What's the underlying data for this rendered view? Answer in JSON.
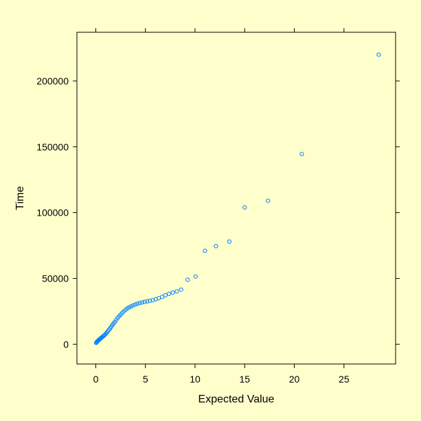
{
  "colors": {
    "background": "#ffffcc",
    "panel": "#ffffcc",
    "point": "#0080ff",
    "axis": "#000000"
  },
  "chart_data": {
    "type": "scatter",
    "title": "",
    "xlabel": "Expected Value",
    "ylabel": "Time",
    "xlim": [
      -1.9,
      30.2
    ],
    "ylim": [
      -15000,
      237000
    ],
    "xticks": [
      0,
      5,
      10,
      15,
      20,
      25
    ],
    "yticks": [
      0,
      50000,
      100000,
      150000,
      200000
    ],
    "xtick_labels": [
      "0",
      "5",
      "10",
      "15",
      "20",
      "25"
    ],
    "ytick_labels": [
      "0",
      "50000",
      "100000",
      "150000",
      "200000"
    ],
    "grid": false,
    "marker": "open-circle",
    "series": [
      {
        "x": [
          0.03,
          0.08,
          0.13,
          0.18,
          0.24,
          0.3,
          0.36,
          0.42,
          0.48,
          0.55,
          0.62,
          0.7,
          0.78,
          0.86,
          0.95,
          1.04,
          1.13,
          1.23,
          1.33,
          1.44,
          1.55,
          1.67,
          1.79,
          1.92,
          2.06,
          2.2,
          2.35,
          2.5,
          2.66,
          2.83,
          3.0,
          3.18,
          3.37,
          3.56,
          3.77,
          3.98,
          4.2,
          4.43,
          4.67,
          4.92,
          5.18,
          5.45,
          5.74,
          6.04,
          6.35,
          6.68,
          7.02,
          7.38,
          7.76,
          8.16,
          8.6,
          9.25,
          10.05,
          11.0,
          12.1,
          13.45,
          15.0,
          17.35,
          20.75,
          28.5
        ],
        "y": [
          1000,
          1500,
          2000,
          2400,
          2800,
          3200,
          3600,
          4000,
          4400,
          4800,
          5300,
          5800,
          6300,
          6800,
          7500,
          8200,
          9000,
          10000,
          11000,
          12000,
          13200,
          14500,
          15800,
          17000,
          18500,
          20000,
          21200,
          22500,
          23800,
          25000,
          26200,
          27200,
          28000,
          28800,
          29500,
          30200,
          30800,
          31300,
          31800,
          32200,
          32600,
          33000,
          33500,
          34200,
          35000,
          36000,
          37200,
          38300,
          39300,
          40200,
          41500,
          49000,
          51500,
          71000,
          74500,
          78000,
          104000,
          109000,
          144500,
          220000
        ]
      }
    ]
  }
}
